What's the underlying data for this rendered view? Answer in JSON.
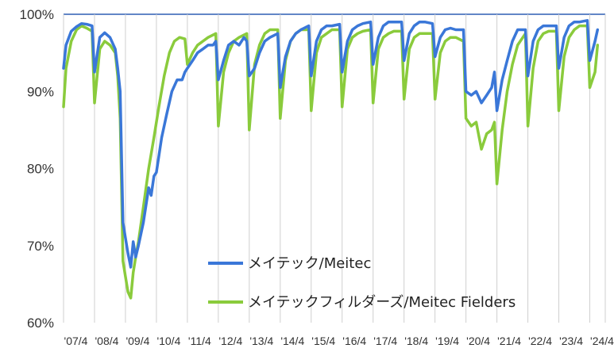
{
  "chart_data": {
    "type": "line",
    "title": "",
    "xlabel": "",
    "ylabel": "",
    "ylim": [
      60,
      100
    ],
    "y_ticks": [
      "60%",
      "70%",
      "80%",
      "90%",
      "100%"
    ],
    "x_ticks": [
      "'07/4",
      "'08/4",
      "'09/4",
      "'10/4",
      "'11/4",
      "'12/4",
      "'13/4",
      "'14/4",
      "'15/4",
      "'16/4",
      "'17/4",
      "'18/4",
      "'19/4",
      "'20/4",
      "'21/4",
      "'22/4",
      "'23/4",
      "'24/4"
    ],
    "x_range": [
      2007.25,
      2024.75
    ],
    "grid": "vertical",
    "legend_position": "bottom-right",
    "series": [
      {
        "name": "メイテック/Meitec",
        "color": "#3a77d8",
        "points": [
          [
            2007.25,
            93.0
          ],
          [
            2007.33,
            96.0
          ],
          [
            2007.5,
            97.8
          ],
          [
            2007.67,
            98.4
          ],
          [
            2007.83,
            98.8
          ],
          [
            2008.0,
            98.7
          ],
          [
            2008.17,
            98.5
          ],
          [
            2008.25,
            92.5
          ],
          [
            2008.42,
            97.0
          ],
          [
            2008.58,
            97.6
          ],
          [
            2008.75,
            97.0
          ],
          [
            2008.92,
            95.5
          ],
          [
            2009.0,
            93.0
          ],
          [
            2009.08,
            90.0
          ],
          [
            2009.17,
            73.0
          ],
          [
            2009.25,
            71.0
          ],
          [
            2009.33,
            69.0
          ],
          [
            2009.42,
            67.2
          ],
          [
            2009.5,
            70.5
          ],
          [
            2009.58,
            68.5
          ],
          [
            2009.67,
            70.0
          ],
          [
            2009.83,
            73.0
          ],
          [
            2010.0,
            77.5
          ],
          [
            2010.08,
            76.5
          ],
          [
            2010.17,
            79.0
          ],
          [
            2010.25,
            79.5
          ],
          [
            2010.42,
            84.0
          ],
          [
            2010.58,
            87.0
          ],
          [
            2010.75,
            90.0
          ],
          [
            2010.92,
            91.5
          ],
          [
            2011.08,
            91.5
          ],
          [
            2011.17,
            92.5
          ],
          [
            2011.25,
            93.0
          ],
          [
            2011.42,
            94.0
          ],
          [
            2011.58,
            95.0
          ],
          [
            2011.75,
            95.5
          ],
          [
            2011.92,
            96.0
          ],
          [
            2012.08,
            96.0
          ],
          [
            2012.17,
            96.5
          ],
          [
            2012.25,
            91.5
          ],
          [
            2012.42,
            94.0
          ],
          [
            2012.58,
            96.0
          ],
          [
            2012.75,
            96.5
          ],
          [
            2012.92,
            96.0
          ],
          [
            2013.08,
            97.0
          ],
          [
            2013.17,
            96.5
          ],
          [
            2013.25,
            92.0
          ],
          [
            2013.42,
            93.0
          ],
          [
            2013.58,
            95.0
          ],
          [
            2013.75,
            96.5
          ],
          [
            2013.92,
            97.0
          ],
          [
            2014.17,
            97.5
          ],
          [
            2014.25,
            90.5
          ],
          [
            2014.42,
            94.5
          ],
          [
            2014.58,
            96.5
          ],
          [
            2014.75,
            97.5
          ],
          [
            2014.92,
            98.0
          ],
          [
            2015.17,
            98.5
          ],
          [
            2015.25,
            92.0
          ],
          [
            2015.42,
            96.5
          ],
          [
            2015.58,
            98.0
          ],
          [
            2015.75,
            98.5
          ],
          [
            2015.92,
            98.5
          ],
          [
            2016.17,
            98.7
          ],
          [
            2016.25,
            92.5
          ],
          [
            2016.42,
            96.5
          ],
          [
            2016.58,
            98.0
          ],
          [
            2016.75,
            98.5
          ],
          [
            2016.92,
            98.8
          ],
          [
            2017.17,
            99.0
          ],
          [
            2017.25,
            93.5
          ],
          [
            2017.42,
            97.0
          ],
          [
            2017.58,
            98.5
          ],
          [
            2017.75,
            99.0
          ],
          [
            2017.92,
            99.0
          ],
          [
            2018.17,
            99.0
          ],
          [
            2018.25,
            94.0
          ],
          [
            2018.42,
            97.5
          ],
          [
            2018.58,
            98.5
          ],
          [
            2018.75,
            99.0
          ],
          [
            2018.92,
            99.0
          ],
          [
            2019.17,
            98.8
          ],
          [
            2019.25,
            94.5
          ],
          [
            2019.42,
            97.0
          ],
          [
            2019.58,
            98.0
          ],
          [
            2019.75,
            98.2
          ],
          [
            2019.92,
            98.0
          ],
          [
            2020.17,
            98.0
          ],
          [
            2020.25,
            90.0
          ],
          [
            2020.42,
            89.5
          ],
          [
            2020.58,
            90.0
          ],
          [
            2020.75,
            88.5
          ],
          [
            2020.92,
            89.5
          ],
          [
            2021.08,
            90.5
          ],
          [
            2021.17,
            92.5
          ],
          [
            2021.25,
            87.5
          ],
          [
            2021.42,
            91.5
          ],
          [
            2021.58,
            94.0
          ],
          [
            2021.75,
            96.5
          ],
          [
            2021.92,
            98.0
          ],
          [
            2022.17,
            98.0
          ],
          [
            2022.25,
            92.0
          ],
          [
            2022.42,
            96.5
          ],
          [
            2022.58,
            98.0
          ],
          [
            2022.75,
            98.5
          ],
          [
            2022.92,
            98.5
          ],
          [
            2023.17,
            98.5
          ],
          [
            2023.25,
            93.0
          ],
          [
            2023.42,
            97.0
          ],
          [
            2023.58,
            98.5
          ],
          [
            2023.75,
            99.0
          ],
          [
            2023.92,
            99.0
          ],
          [
            2024.17,
            99.2
          ],
          [
            2024.25,
            94.0
          ],
          [
            2024.42,
            96.5
          ],
          [
            2024.5,
            98.0
          ]
        ]
      },
      {
        "name": "メイテックフィルダーズ/Meitec Fielders",
        "color": "#8acb3c",
        "points": [
          [
            2007.25,
            88.0
          ],
          [
            2007.33,
            93.0
          ],
          [
            2007.5,
            96.5
          ],
          [
            2007.67,
            98.0
          ],
          [
            2007.83,
            98.5
          ],
          [
            2008.0,
            98.2
          ],
          [
            2008.17,
            97.8
          ],
          [
            2008.25,
            88.5
          ],
          [
            2008.42,
            95.5
          ],
          [
            2008.58,
            96.5
          ],
          [
            2008.75,
            96.0
          ],
          [
            2008.92,
            95.0
          ],
          [
            2009.0,
            92.0
          ],
          [
            2009.08,
            86.5
          ],
          [
            2009.17,
            68.0
          ],
          [
            2009.25,
            66.0
          ],
          [
            2009.33,
            64.0
          ],
          [
            2009.42,
            63.2
          ],
          [
            2009.5,
            66.5
          ],
          [
            2009.58,
            68.5
          ],
          [
            2009.67,
            70.5
          ],
          [
            2009.83,
            75.0
          ],
          [
            2010.0,
            80.0
          ],
          [
            2010.17,
            84.0
          ],
          [
            2010.33,
            88.0
          ],
          [
            2010.5,
            92.0
          ],
          [
            2010.67,
            95.0
          ],
          [
            2010.83,
            96.5
          ],
          [
            2011.0,
            97.0
          ],
          [
            2011.17,
            96.8
          ],
          [
            2011.25,
            93.5
          ],
          [
            2011.42,
            95.0
          ],
          [
            2011.58,
            96.0
          ],
          [
            2011.75,
            96.5
          ],
          [
            2011.92,
            97.0
          ],
          [
            2012.17,
            97.5
          ],
          [
            2012.25,
            85.5
          ],
          [
            2012.42,
            92.5
          ],
          [
            2012.58,
            95.0
          ],
          [
            2012.75,
            96.5
          ],
          [
            2012.92,
            97.0
          ],
          [
            2013.17,
            97.5
          ],
          [
            2013.25,
            85.0
          ],
          [
            2013.42,
            93.5
          ],
          [
            2013.58,
            96.0
          ],
          [
            2013.75,
            97.5
          ],
          [
            2013.92,
            98.0
          ],
          [
            2014.17,
            98.0
          ],
          [
            2014.25,
            86.5
          ],
          [
            2014.42,
            94.0
          ],
          [
            2014.58,
            96.5
          ],
          [
            2014.75,
            97.5
          ],
          [
            2014.92,
            98.0
          ],
          [
            2015.17,
            98.0
          ],
          [
            2015.25,
            87.5
          ],
          [
            2015.42,
            95.0
          ],
          [
            2015.58,
            97.0
          ],
          [
            2015.75,
            97.5
          ],
          [
            2015.92,
            98.0
          ],
          [
            2016.17,
            98.0
          ],
          [
            2016.25,
            88.0
          ],
          [
            2016.42,
            95.5
          ],
          [
            2016.58,
            97.0
          ],
          [
            2016.75,
            97.5
          ],
          [
            2016.92,
            97.8
          ],
          [
            2017.17,
            98.0
          ],
          [
            2017.25,
            88.5
          ],
          [
            2017.42,
            95.5
          ],
          [
            2017.58,
            97.0
          ],
          [
            2017.75,
            97.5
          ],
          [
            2017.92,
            97.8
          ],
          [
            2018.17,
            97.8
          ],
          [
            2018.25,
            89.0
          ],
          [
            2018.42,
            95.5
          ],
          [
            2018.58,
            97.0
          ],
          [
            2018.75,
            97.5
          ],
          [
            2018.92,
            97.5
          ],
          [
            2019.17,
            97.5
          ],
          [
            2019.25,
            89.0
          ],
          [
            2019.42,
            95.0
          ],
          [
            2019.58,
            96.5
          ],
          [
            2019.75,
            97.0
          ],
          [
            2019.92,
            97.0
          ],
          [
            2020.17,
            96.5
          ],
          [
            2020.25,
            86.5
          ],
          [
            2020.42,
            85.5
          ],
          [
            2020.58,
            86.0
          ],
          [
            2020.75,
            82.5
          ],
          [
            2020.92,
            84.5
          ],
          [
            2021.08,
            85.0
          ],
          [
            2021.17,
            86.0
          ],
          [
            2021.25,
            78.0
          ],
          [
            2021.42,
            85.0
          ],
          [
            2021.58,
            90.0
          ],
          [
            2021.75,
            93.5
          ],
          [
            2021.92,
            96.0
          ],
          [
            2022.17,
            97.5
          ],
          [
            2022.25,
            85.5
          ],
          [
            2022.42,
            93.0
          ],
          [
            2022.58,
            96.5
          ],
          [
            2022.75,
            97.5
          ],
          [
            2022.92,
            97.8
          ],
          [
            2023.17,
            97.8
          ],
          [
            2023.25,
            87.5
          ],
          [
            2023.42,
            94.5
          ],
          [
            2023.58,
            97.0
          ],
          [
            2023.75,
            98.0
          ],
          [
            2023.92,
            98.5
          ],
          [
            2024.17,
            98.5
          ],
          [
            2024.25,
            90.5
          ],
          [
            2024.42,
            92.5
          ],
          [
            2024.5,
            96.0
          ]
        ]
      }
    ]
  }
}
